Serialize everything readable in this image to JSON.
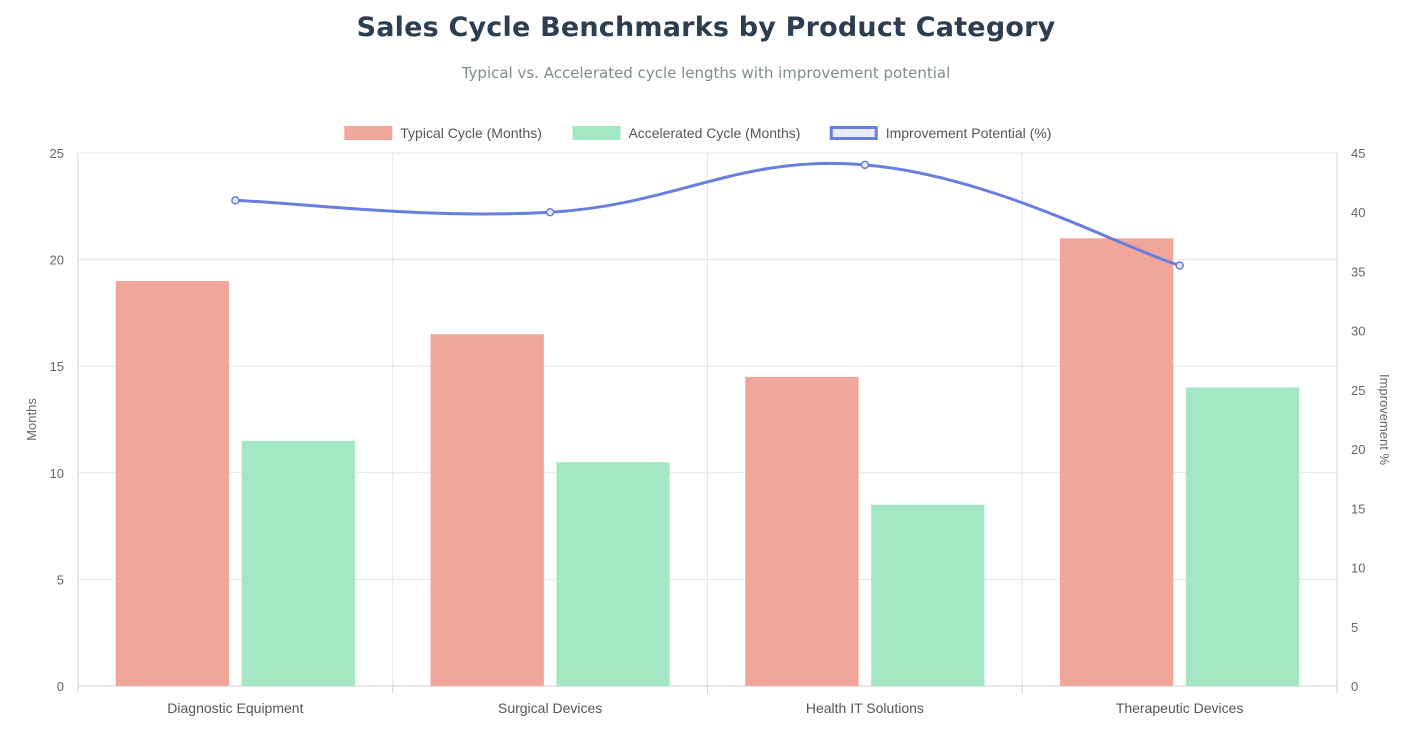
{
  "chart_data": {
    "type": "bar",
    "title": "Sales Cycle Benchmarks by Product Category",
    "subtitle": "Typical vs. Accelerated cycle lengths with improvement potential",
    "categories": [
      "Diagnostic Equipment",
      "Surgical Devices",
      "Health IT Solutions",
      "Therapeutic Devices"
    ],
    "series": [
      {
        "name": "Typical Cycle (Months)",
        "type": "bar",
        "axis": "left",
        "color": "#f1a69b",
        "values": [
          19,
          16.5,
          14.5,
          21
        ]
      },
      {
        "name": "Accelerated Cycle (Months)",
        "type": "bar",
        "axis": "left",
        "color": "#a3e8c2",
        "values": [
          11.5,
          10.5,
          8.5,
          14
        ]
      },
      {
        "name": "Improvement Potential (%)",
        "type": "line",
        "axis": "right",
        "color": "#6a7ee0",
        "fill": "#e8ebfb",
        "values": [
          41,
          40,
          44,
          35.5
        ]
      }
    ],
    "ylabel": "Months",
    "y2label": "Improvement %",
    "ylim": [
      0,
      25
    ],
    "y2lim": [
      0,
      45
    ],
    "yticks": [
      0,
      5,
      10,
      15,
      20,
      25
    ],
    "y2ticks": [
      0,
      5,
      10,
      15,
      20,
      25,
      30,
      35,
      40,
      45
    ],
    "grid": true,
    "legend_position": "top-center"
  }
}
